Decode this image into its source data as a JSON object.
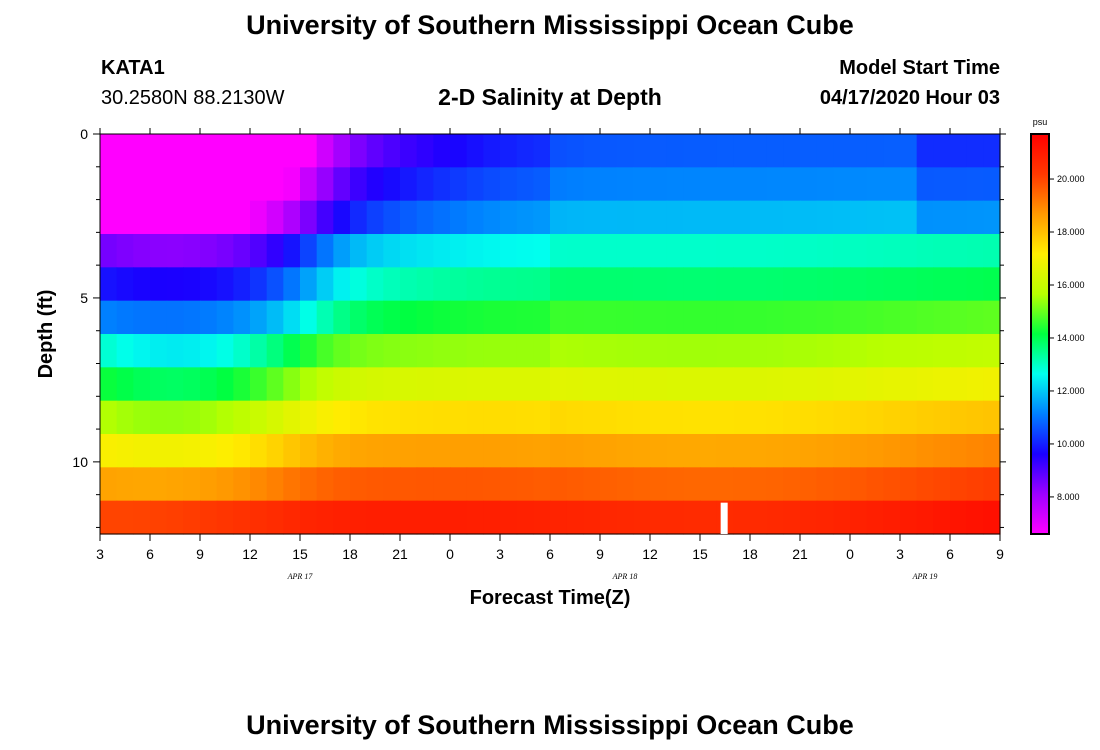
{
  "header": {
    "title": "University of Southern Mississippi Ocean Cube",
    "station": "KATA1",
    "coords": "30.2580N 88.2130W",
    "subtitle": "2-D Salinity at Depth",
    "model_start_label": "Model Start Time",
    "model_start_value": "04/17/2020 Hour 03"
  },
  "footer": {
    "title": "University of Southern Mississippi Ocean Cube"
  },
  "chart_data": {
    "type": "heatmap",
    "title": "2-D Salinity at Depth",
    "xlabel": "Forecast Time(Z)",
    "ylabel": "Depth (ft)",
    "x_tick_labels": [
      "3",
      "6",
      "9",
      "12",
      "15",
      "18",
      "21",
      "0",
      "3",
      "6",
      "9",
      "12",
      "15",
      "18",
      "21",
      "0",
      "3",
      "6",
      "9"
    ],
    "date_labels": [
      {
        "tick_index": 4,
        "text": "APR 17"
      },
      {
        "tick_index": 10.5,
        "text": "APR 18"
      },
      {
        "tick_index": 16.5,
        "text": "APR 19"
      }
    ],
    "y_tick_labels": [
      {
        "value": 0,
        "text": "0"
      },
      {
        "value": 5,
        "text": "5"
      },
      {
        "value": 10,
        "text": "10"
      }
    ],
    "ylim": [
      0,
      12.2
    ],
    "depth_rows": 12,
    "time_columns": 54,
    "colorbar": {
      "unit": "psu",
      "range": [
        6.6,
        21.7
      ],
      "tick_labels": [
        "8.000",
        "10.000",
        "12.000",
        "14.000",
        "16.000",
        "18.000",
        "20.000"
      ],
      "tick_values": [
        8,
        10,
        12,
        14,
        16,
        18,
        20
      ],
      "colors": [
        "#ff00ff",
        "#9d00ff",
        "#1a00ff",
        "#0080ff",
        "#00ffee",
        "#00ff40",
        "#b8ff00",
        "#ffee00",
        "#ff9900",
        "#ff3800",
        "#ff0000"
      ]
    },
    "key_points_psu": {
      "surface_min_near_9Z_apr17": 7.0,
      "bottom_max_apr18": 21.5,
      "mid_depth_5ft_late": 15.5
    }
  }
}
